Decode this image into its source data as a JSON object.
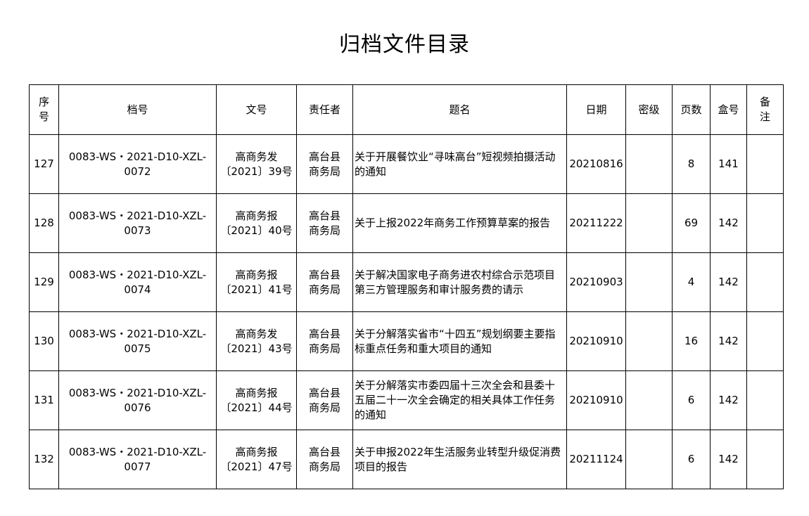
{
  "title": "归档文件目录",
  "headers": [
    "序号",
    "档号",
    "文号",
    "责任者",
    "题名",
    "日期",
    "密级",
    "页数",
    "盒号",
    "备注"
  ],
  "rows": [
    {
      "seq": "127",
      "archive_no": [
        "0083-WS・2021-D10-XZL-",
        "0072"
      ],
      "doc_no": [
        "高商务发",
        "〔2021〕39号"
      ],
      "author": [
        "高台县",
        "商务局"
      ],
      "title": "关于开展餐饮业“寻味高台”短视频拍摄活动的通知",
      "date": "20210816",
      "secret": "",
      "pages": "8",
      "box": "141",
      "note": ""
    },
    {
      "seq": "128",
      "archive_no": [
        "0083-WS・2021-D10-XZL-",
        "0073"
      ],
      "doc_no": [
        "高商务报",
        "〔2021〕40号"
      ],
      "author": [
        "高台县",
        "商务局"
      ],
      "title": "关于上报2022年商务工作预算草案的报告",
      "date": "20211222",
      "secret": "",
      "pages": "69",
      "box": "142",
      "note": ""
    },
    {
      "seq": "129",
      "archive_no": [
        "0083-WS・2021-D10-XZL-",
        "0074"
      ],
      "doc_no": [
        "高商务报",
        "〔2021〕41号"
      ],
      "author": [
        "高台县",
        "商务局"
      ],
      "title": "关于解决国家电子商务进农村综合示范项目第三方管理服务和审计服务费的请示",
      "date": "20210903",
      "secret": "",
      "pages": "4",
      "box": "142",
      "note": ""
    },
    {
      "seq": "130",
      "archive_no": [
        "0083-WS・2021-D10-XZL-",
        "0075"
      ],
      "doc_no": [
        "高商务发",
        "〔2021〕43号"
      ],
      "author": [
        "高台县",
        "商务局"
      ],
      "title": "关于分解落实省市“十四五”规划纲要主要指标重点任务和重大项目的通知",
      "date": "20210910",
      "secret": "",
      "pages": "16",
      "box": "142",
      "note": ""
    },
    {
      "seq": "131",
      "archive_no": [
        "0083-WS・2021-D10-XZL-",
        "0076"
      ],
      "doc_no": [
        "高商务报",
        "〔2021〕44号"
      ],
      "author": [
        "高台县",
        "商务局"
      ],
      "title": "关于分解落实市委四届十三次全会和县委十五届二十一次全会确定的相关具体工作任务的通知",
      "date": "20210910",
      "secret": "",
      "pages": "6",
      "box": "142",
      "note": ""
    },
    {
      "seq": "132",
      "archive_no": [
        "0083-WS・2021-D10-XZL-",
        "0077"
      ],
      "doc_no": [
        "高商务报",
        "〔2021〕47号"
      ],
      "author": [
        "高台县",
        "商务局"
      ],
      "title": "关于申报2022年生活服务业转型升级促消费项目的报告",
      "date": "20211124",
      "secret": "",
      "pages": "6",
      "box": "142",
      "note": ""
    }
  ]
}
